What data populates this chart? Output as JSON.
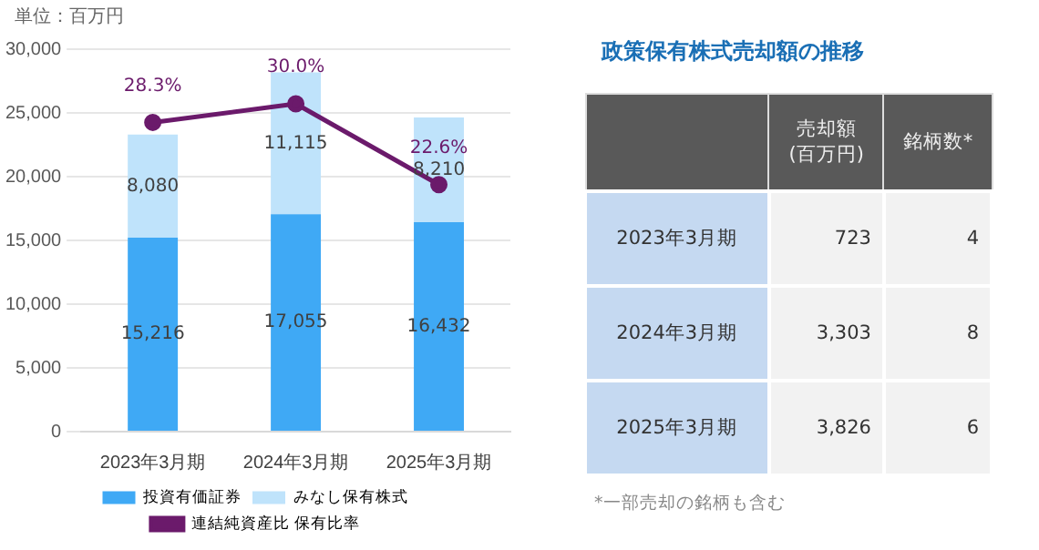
{
  "chart_data": [
    {
      "type": "bar",
      "ylabel": "単位：百万円",
      "categories": [
        "2023年3月期",
        "2024年3月期",
        "2025年3月期"
      ],
      "stacked": true,
      "series": [
        {
          "name": "投資有価証券",
          "color": "#3fa9f5",
          "values": [
            15216,
            17055,
            16432
          ],
          "value_labels": [
            "15,216",
            "17,055",
            "16,432"
          ]
        },
        {
          "name": "みなし保有株式",
          "color": "#bfe3fb",
          "values": [
            8080,
            11115,
            8210
          ],
          "value_labels": [
            "8,080",
            "11,115",
            "8,210"
          ]
        },
        {
          "name": "連結純資産比 保有比率",
          "type": "line",
          "axis": "y2",
          "color": "#6b1a6b",
          "marker": "circle",
          "values": [
            28.3,
            30.0,
            22.6
          ],
          "value_labels": [
            "28.3%",
            "30.0%",
            "22.6%"
          ]
        }
      ],
      "ylim": [
        0,
        30000
      ],
      "yticks": [
        0,
        {
          "value": 5000,
          "label": "5,000"
        },
        {
          "value": 10000,
          "label": "10,000"
        },
        {
          "value": 15000,
          "label": "15,000"
        },
        {
          "value": 20000,
          "label": "20,000"
        },
        {
          "value": 25000,
          "label": "25,000"
        },
        {
          "value": 30000,
          "label": "30,000"
        }
      ],
      "y2lim": [
        0,
        35
      ],
      "grid": "y",
      "legend": "bottom"
    },
    {
      "type": "other",
      "title": "政策保有株式売却額の推移",
      "categories": [
        "2023年3月期",
        "2024年3月期",
        "2025年3月期"
      ],
      "series": [
        {
          "name": "売却額\n(百万円)",
          "values": [
            723,
            3303,
            3826
          ],
          "value_labels": [
            "723",
            "3,303",
            "3,826"
          ]
        },
        {
          "name": "銘柄数*",
          "values": [
            4,
            8,
            6
          ],
          "value_labels": [
            "4",
            "8",
            "6"
          ]
        }
      ],
      "annotations": [
        "*一部売却の銘柄も含む"
      ]
    }
  ]
}
